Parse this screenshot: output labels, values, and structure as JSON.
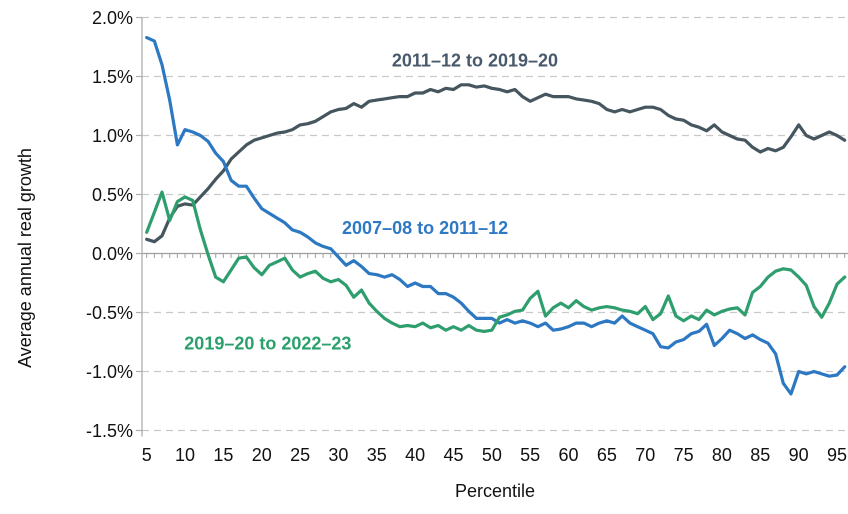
{
  "chart_data": {
    "type": "line",
    "title": "",
    "xlabel": "Percentile",
    "ylabel": "Average annual real growth",
    "x_start": 5,
    "x_step": 1,
    "x_end": 96,
    "ylim": [
      -1.5,
      2.0
    ],
    "xlim": [
      4.4,
      96.4
    ],
    "grid": "horizontal-dashed",
    "legend_position": "inline-annotations",
    "yticks": [
      2.0,
      1.5,
      1.0,
      0.5,
      0.0,
      -0.5,
      -1.0,
      -1.5
    ],
    "ytick_labels": [
      "2.0%",
      "1.5%",
      "1.0%",
      "0.5%",
      "0.0%",
      "-0.5%",
      "-1.0%",
      "-1.5%"
    ],
    "xticks": [
      5,
      10,
      15,
      20,
      25,
      30,
      35,
      40,
      45,
      50,
      55,
      60,
      65,
      70,
      75,
      80,
      85,
      90,
      95
    ],
    "colors": {
      "grid": "#c9c9c9",
      "zero_axis": "#9e9e9e",
      "axis": "#aeaeae",
      "text": "#111111",
      "background": "#ffffff"
    },
    "series": [
      {
        "name": "2011–12 to 2019–20",
        "color": "#46565f",
        "label_color": "#47596b",
        "label": {
          "x": 47.8,
          "y": 1.64
        },
        "values": [
          0.12,
          0.1,
          0.15,
          0.3,
          0.4,
          0.42,
          0.41,
          0.48,
          0.55,
          0.63,
          0.7,
          0.8,
          0.86,
          0.92,
          0.96,
          0.98,
          1.0,
          1.02,
          1.03,
          1.05,
          1.09,
          1.1,
          1.12,
          1.16,
          1.2,
          1.22,
          1.23,
          1.27,
          1.24,
          1.29,
          1.3,
          1.31,
          1.32,
          1.33,
          1.33,
          1.36,
          1.36,
          1.39,
          1.37,
          1.4,
          1.39,
          1.43,
          1.43,
          1.41,
          1.42,
          1.4,
          1.39,
          1.37,
          1.39,
          1.33,
          1.29,
          1.32,
          1.35,
          1.33,
          1.33,
          1.33,
          1.31,
          1.3,
          1.29,
          1.27,
          1.22,
          1.2,
          1.22,
          1.2,
          1.22,
          1.24,
          1.24,
          1.22,
          1.17,
          1.14,
          1.13,
          1.09,
          1.07,
          1.04,
          1.09,
          1.03,
          1.0,
          0.97,
          0.96,
          0.9,
          0.86,
          0.89,
          0.87,
          0.9,
          0.99,
          1.09,
          1.0,
          0.97,
          1.0,
          1.03,
          1.0,
          0.96
        ]
      },
      {
        "name": "2007–08 to 2011–12",
        "color": "#2d78c2",
        "label_color": "#2e79c5",
        "label": {
          "x": 41.3,
          "y": 0.22
        },
        "values": [
          1.83,
          1.8,
          1.6,
          1.3,
          0.92,
          1.05,
          1.03,
          1.0,
          0.95,
          0.85,
          0.78,
          0.62,
          0.57,
          0.57,
          0.47,
          0.38,
          0.34,
          0.3,
          0.26,
          0.2,
          0.18,
          0.14,
          0.09,
          0.06,
          0.04,
          -0.03,
          -0.1,
          -0.06,
          -0.11,
          -0.17,
          -0.18,
          -0.2,
          -0.18,
          -0.22,
          -0.28,
          -0.25,
          -0.28,
          -0.28,
          -0.34,
          -0.34,
          -0.37,
          -0.42,
          -0.49,
          -0.55,
          -0.55,
          -0.55,
          -0.59,
          -0.56,
          -0.59,
          -0.57,
          -0.59,
          -0.62,
          -0.59,
          -0.65,
          -0.64,
          -0.62,
          -0.59,
          -0.59,
          -0.62,
          -0.59,
          -0.57,
          -0.59,
          -0.53,
          -0.59,
          -0.62,
          -0.65,
          -0.68,
          -0.79,
          -0.8,
          -0.75,
          -0.73,
          -0.68,
          -0.66,
          -0.6,
          -0.78,
          -0.72,
          -0.65,
          -0.68,
          -0.72,
          -0.69,
          -0.73,
          -0.76,
          -0.85,
          -1.1,
          -1.19,
          -1.0,
          -1.02,
          -1.0,
          -1.02,
          -1.04,
          -1.03,
          -0.96
        ]
      },
      {
        "name": "2019–20 to 2022–23",
        "color": "#2f9e6e",
        "label_color": "#2aa06d",
        "label": {
          "x": 20.8,
          "y": -0.76
        },
        "values": [
          0.18,
          0.35,
          0.52,
          0.28,
          0.44,
          0.48,
          0.45,
          0.2,
          -0.01,
          -0.2,
          -0.24,
          -0.14,
          -0.04,
          -0.03,
          -0.12,
          -0.18,
          -0.1,
          -0.07,
          -0.04,
          -0.14,
          -0.2,
          -0.17,
          -0.15,
          -0.21,
          -0.24,
          -0.22,
          -0.27,
          -0.37,
          -0.31,
          -0.42,
          -0.49,
          -0.55,
          -0.59,
          -0.62,
          -0.61,
          -0.62,
          -0.59,
          -0.63,
          -0.61,
          -0.65,
          -0.62,
          -0.65,
          -0.61,
          -0.65,
          -0.66,
          -0.65,
          -0.54,
          -0.52,
          -0.49,
          -0.48,
          -0.38,
          -0.32,
          -0.53,
          -0.46,
          -0.42,
          -0.46,
          -0.4,
          -0.45,
          -0.48,
          -0.46,
          -0.45,
          -0.46,
          -0.48,
          -0.49,
          -0.51,
          -0.45,
          -0.56,
          -0.51,
          -0.36,
          -0.53,
          -0.57,
          -0.53,
          -0.56,
          -0.48,
          -0.52,
          -0.49,
          -0.47,
          -0.46,
          -0.52,
          -0.33,
          -0.28,
          -0.2,
          -0.15,
          -0.13,
          -0.14,
          -0.2,
          -0.27,
          -0.45,
          -0.54,
          -0.42,
          -0.26,
          -0.2
        ]
      }
    ]
  }
}
